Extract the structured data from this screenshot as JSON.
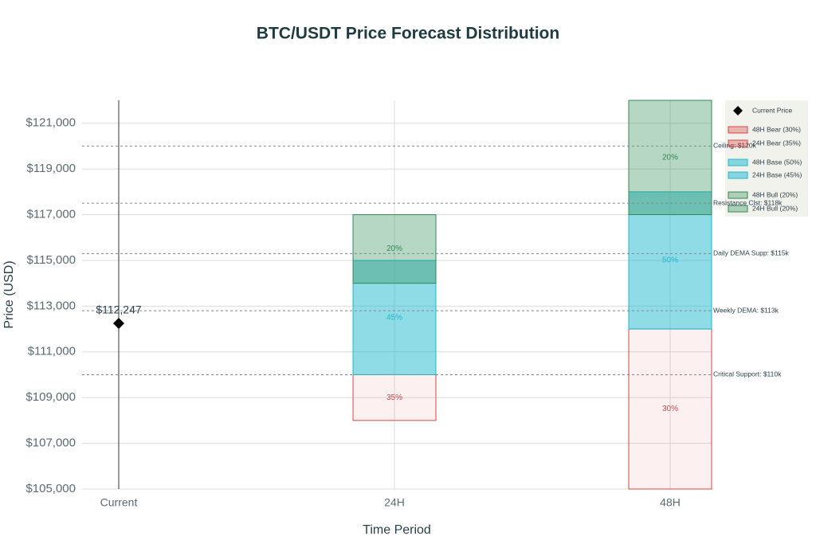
{
  "chart_data": {
    "type": "range-bar",
    "title": "BTC/USDT Price Forecast Distribution",
    "x_label": "Time Period",
    "y_label": "Price (USD)",
    "categories": [
      "Current",
      "24H",
      "48H"
    ],
    "ylim": [
      105000,
      122000
    ],
    "yticks": [
      {
        "value": 105000,
        "label": "$105,000"
      },
      {
        "value": 107000,
        "label": "$107,000"
      },
      {
        "value": 109000,
        "label": "$109,000"
      },
      {
        "value": 111000,
        "label": "$111,000"
      },
      {
        "value": 113000,
        "label": "$113,000"
      },
      {
        "value": 115000,
        "label": "$115,000"
      },
      {
        "value": 117000,
        "label": "$117,000"
      },
      {
        "value": 119000,
        "label": "$119,000"
      },
      {
        "value": 121000,
        "label": "$121,000"
      }
    ],
    "grid": true,
    "legend_position": "top-right",
    "current_price": {
      "name": "Current Price",
      "color": "#000000",
      "category": "Current",
      "value": 112247,
      "value_label": "$112,247"
    },
    "series": [
      {
        "name": "48H Bear (30%)",
        "color": "#DB4545",
        "opacity": 0.08,
        "low": [
          null,
          null,
          105000
        ],
        "high": [
          null,
          null,
          112000
        ],
        "bar_labels": [
          null,
          null,
          "30%"
        ]
      },
      {
        "name": "24H Bear (35%)",
        "color": "#DB4545",
        "opacity": 0.08,
        "low": [
          null,
          108000,
          null
        ],
        "high": [
          null,
          110000,
          null
        ],
        "bar_labels": [
          null,
          "35%",
          null
        ]
      },
      {
        "name": "48H Base (50%)",
        "color": "#1FB8CD",
        "opacity": 0.5,
        "low": [
          null,
          null,
          112000
        ],
        "high": [
          null,
          null,
          118000
        ],
        "bar_labels": [
          null,
          null,
          "50%"
        ]
      },
      {
        "name": "24H Base (45%)",
        "color": "#1FB8CD",
        "opacity": 0.5,
        "low": [
          null,
          110000,
          null
        ],
        "high": [
          null,
          115000,
          null
        ],
        "bar_labels": [
          null,
          "45%",
          null
        ]
      },
      {
        "name": "48H Bull (20%)",
        "color": "#2E8B57",
        "opacity": 0.35,
        "low": [
          null,
          null,
          117000
        ],
        "high": [
          null,
          null,
          122000
        ],
        "bar_labels": [
          null,
          null,
          "20%"
        ]
      },
      {
        "name": "24H Bull (20%)",
        "color": "#2E8B57",
        "opacity": 0.35,
        "low": [
          null,
          114000,
          null
        ],
        "high": [
          null,
          117000,
          null
        ],
        "bar_labels": [
          null,
          "20%",
          null
        ]
      }
    ],
    "reference_lines": [
      {
        "value": 120000,
        "label": "Ceiling: $120k"
      },
      {
        "value": 117500,
        "label": "Resistance Clst: $118k"
      },
      {
        "value": 115300,
        "label": "Daily DEMA Supp: $115k"
      },
      {
        "value": 112800,
        "label": "Weekly DEMA: $113k"
      },
      {
        "value": 110000,
        "label": "Critical Support: $110k"
      }
    ]
  }
}
